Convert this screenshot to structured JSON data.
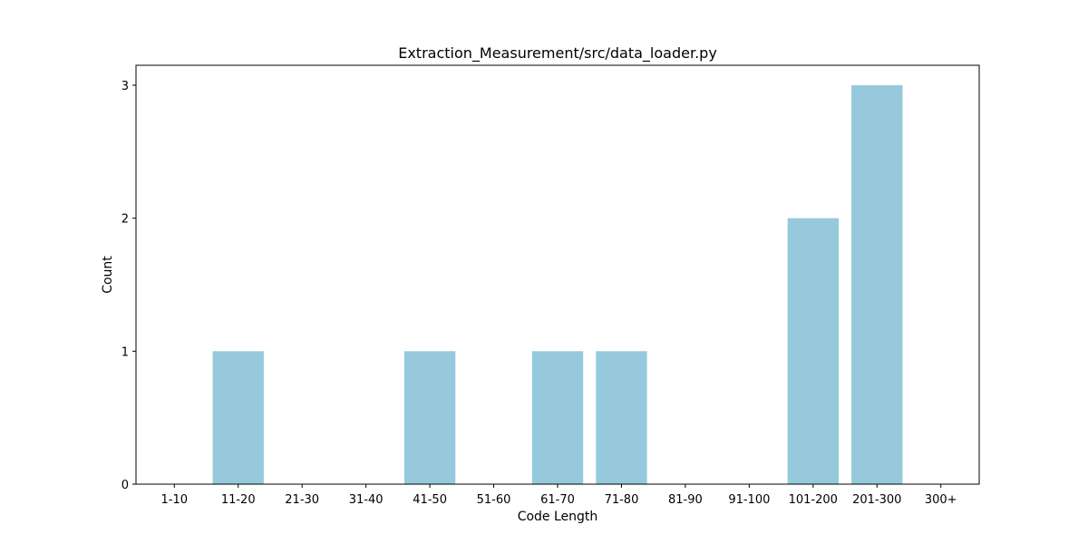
{
  "chart_data": {
    "type": "bar",
    "title": "Extraction_Measurement/src/data_loader.py",
    "xlabel": "Code Length",
    "ylabel": "Count",
    "categories": [
      "1-10",
      "11-20",
      "21-30",
      "31-40",
      "41-50",
      "51-60",
      "61-70",
      "71-80",
      "81-90",
      "91-100",
      "101-200",
      "201-300",
      "300+"
    ],
    "values": [
      0,
      1,
      0,
      0,
      1,
      0,
      1,
      1,
      0,
      0,
      2,
      3,
      0
    ],
    "ylim": [
      0,
      3.15
    ],
    "yticks": [
      0,
      1,
      2,
      3
    ],
    "grid": false,
    "bar_color": "#96c9dc"
  }
}
